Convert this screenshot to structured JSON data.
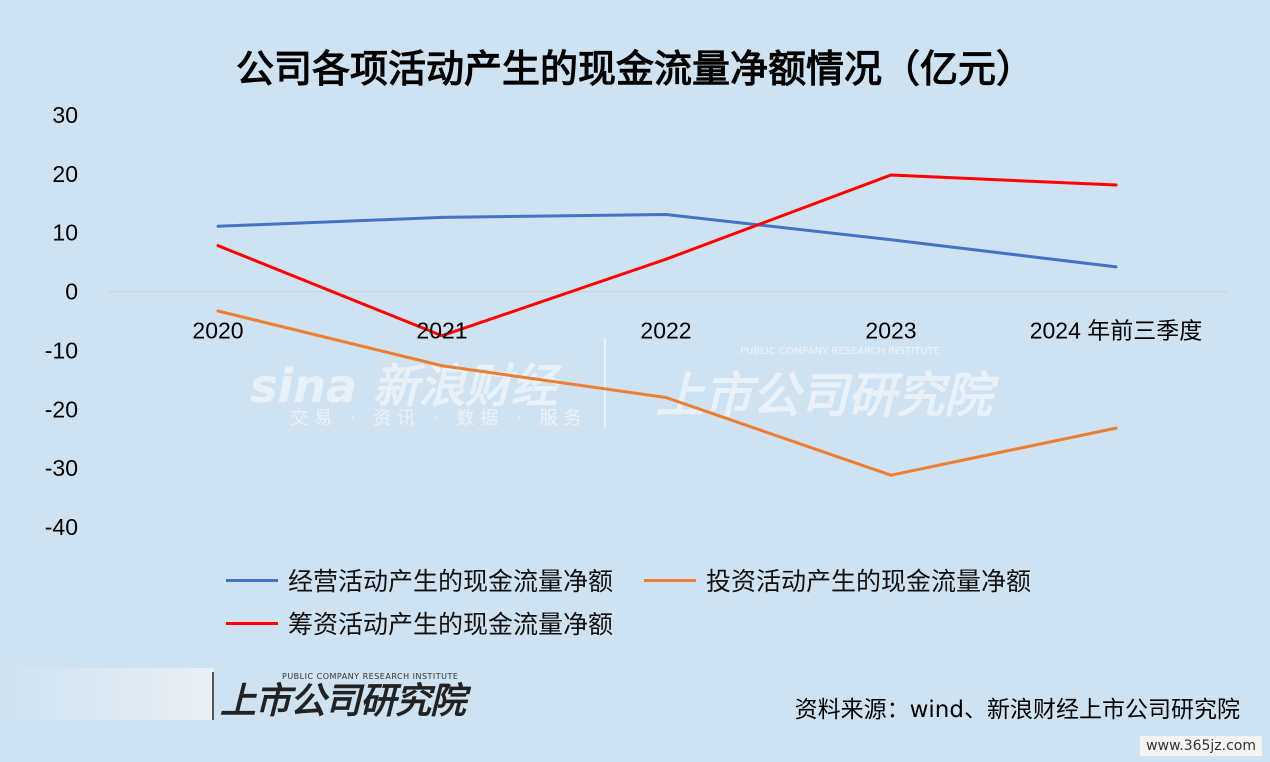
{
  "title": "公司各项活动产生的现金流量净额情况（亿元）",
  "chart_data": {
    "type": "line",
    "categories": [
      "2020",
      "2021",
      "2022",
      "2023",
      "2024 年前三季度"
    ],
    "ylim": [
      -40,
      30
    ],
    "yticks": [
      "30",
      "20",
      "10",
      "0",
      "-10",
      "-20",
      "-30",
      "-40"
    ],
    "ytick_values": [
      30,
      20,
      10,
      0,
      -10,
      -20,
      -30,
      -40
    ],
    "grid": false,
    "legend_position": "bottom",
    "series": [
      {
        "name": "经营活动产生的现金流量净额",
        "color": "#4472c4",
        "values": [
          11.1,
          12.6,
          13.1,
          8.8,
          4.2
        ]
      },
      {
        "name": "投资活动产生的现金流量净额",
        "color": "#ed7d31",
        "values": [
          -3.3,
          -12.6,
          -18.0,
          -31.2,
          -23.2
        ]
      },
      {
        "name": "筹资活动产生的现金流量净额",
        "color": "#ff0000",
        "values": [
          7.8,
          -7.5,
          5.5,
          19.8,
          18.1
        ]
      }
    ]
  },
  "footer": {
    "logo_text": "上市公司研究院",
    "logo_sub": "PUBLIC COMPANY RESEARCH INSTITUTE",
    "source": "资料来源：wind、新浪财经上市公司研究院",
    "site": "www.365jz.com"
  },
  "watermark": {
    "sina": "sina 新浪财经",
    "sina_sub": "交易 · 资讯 · 数据 · 服务",
    "institute": "上市公司研究院",
    "institute_sub": "PUBLIC COMPANY RESEARCH INSTITUTE"
  }
}
